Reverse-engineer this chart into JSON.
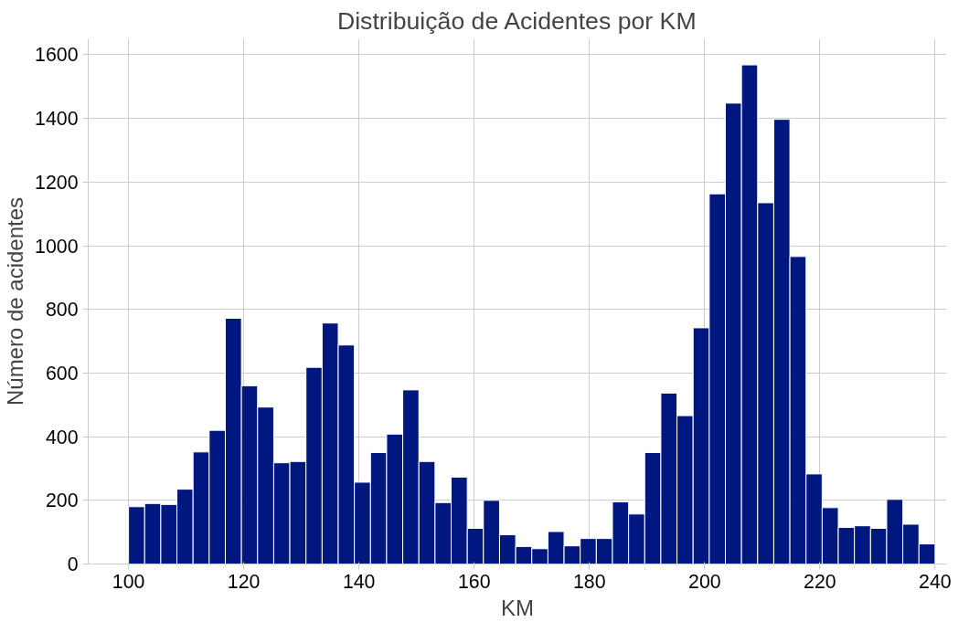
{
  "chart_data": {
    "type": "histogram",
    "title": "Distribuição de Acidentes por KM",
    "xlabel": "KM",
    "ylabel": "Número de acidentes",
    "bins": [
      100,
      102.8,
      105.6,
      108.4,
      111.2,
      114,
      116.8,
      119.6,
      122.4,
      125.2,
      128,
      130.8,
      133.6,
      136.4,
      139.2,
      142,
      144.8,
      147.6,
      150.4,
      153.2,
      156,
      158.8,
      161.6,
      164.4,
      167.2,
      170,
      172.8,
      175.6,
      178.4,
      181.2,
      184,
      186.8,
      189.6,
      192.4,
      195.2,
      198,
      200.8,
      203.6,
      206.4,
      209.2,
      212,
      214.8,
      217.6,
      220.4,
      223.2,
      226,
      228.8,
      231.6,
      234.4,
      237.2,
      240
    ],
    "values": [
      180,
      190,
      187,
      235,
      352,
      420,
      772,
      560,
      493,
      318,
      322,
      618,
      757,
      688,
      257,
      350,
      408,
      547,
      322,
      193,
      273,
      112,
      200,
      92,
      55,
      48,
      102,
      57,
      80,
      80,
      195,
      157,
      350,
      537,
      466,
      742,
      1163,
      1448,
      1568,
      1135,
      1397,
      966,
      283,
      177,
      115,
      120,
      112,
      203,
      125,
      63
    ],
    "color": "#001780",
    "xlim": [
      93,
      242
    ],
    "ylim": [
      0,
      1650
    ],
    "xticks": [
      100,
      120,
      140,
      160,
      180,
      200,
      220,
      240
    ],
    "yticks": [
      0,
      200,
      400,
      600,
      800,
      1000,
      1200,
      1400,
      1600
    ],
    "grid": true
  }
}
